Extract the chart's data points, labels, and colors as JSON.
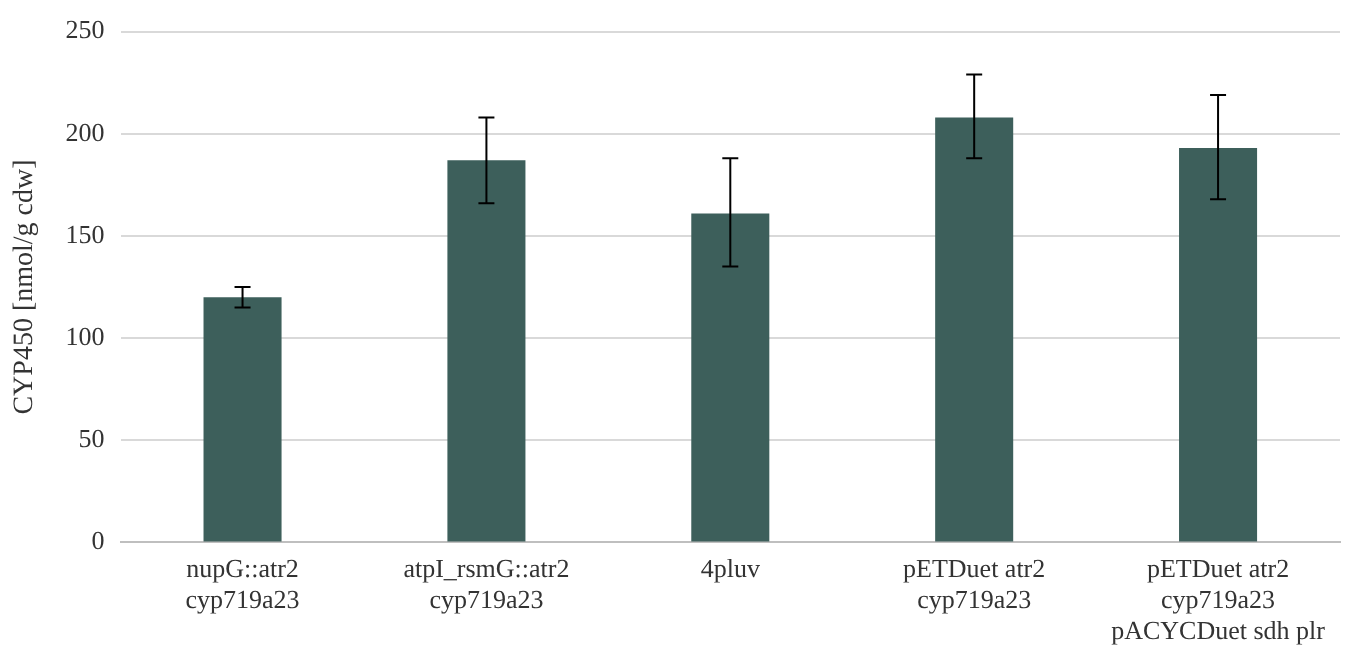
{
  "chart_data": {
    "type": "bar",
    "ylabel": "CYP450 [nmol/g cdw]",
    "categories": [
      "nupG::atr2\ncyp719a23",
      "atpI_rsmG::atr2\ncyp719a23",
      "4pluv",
      "pETDuet atr2\ncyp719a23",
      "pETDuet atr2\ncyp719a23\npACYCDuet sdh plr"
    ],
    "values": [
      120,
      187,
      161,
      208,
      193
    ],
    "errors": [
      5,
      [
        166,
        208
      ],
      [
        135,
        188
      ],
      [
        188,
        229
      ],
      [
        168,
        219
      ]
    ],
    "color": "#3d5f5b",
    "ylim": [
      0,
      250
    ],
    "yticks": [
      0,
      50,
      100,
      150,
      200,
      250
    ],
    "grid": "y",
    "legend": false
  }
}
